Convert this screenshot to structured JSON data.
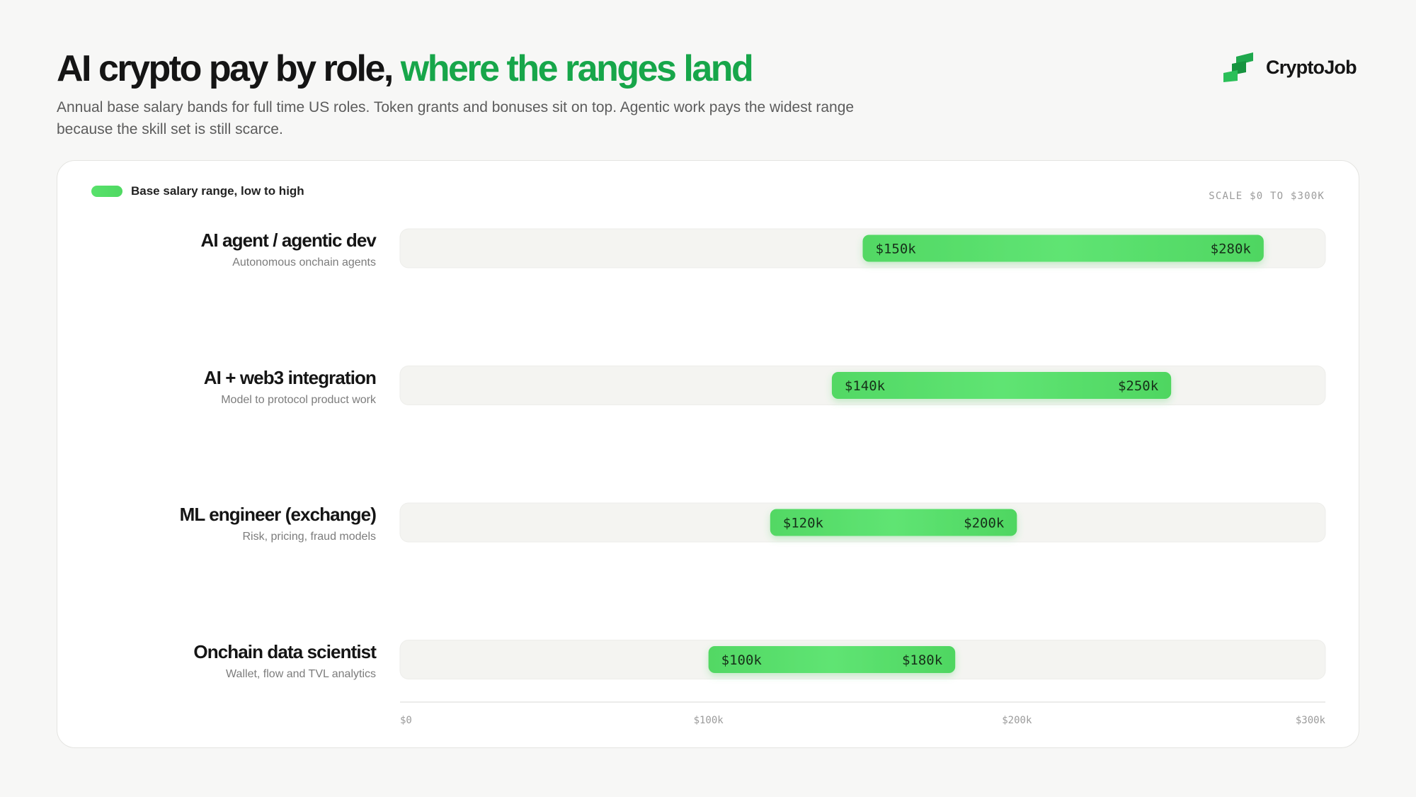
{
  "header": {
    "title_main": "AI crypto pay by role,",
    "title_accent": "where the ranges land",
    "subtitle": "Annual base salary bands for full time US roles. Token grants and bonuses sit on top. Agentic work pays the widest range because the skill set is still scarce."
  },
  "brand": {
    "name": "CryptoJob",
    "logo_icon": "cryptojob-logo-icon",
    "color": "#1fa84d"
  },
  "colors": {
    "accent": "#17a64a",
    "bar": "#55dd68",
    "track": "#f4f4f1"
  },
  "chart_data": {
    "type": "bar",
    "orientation": "horizontal-range",
    "legend": {
      "label": "Base salary range, low to high",
      "placement": "top-left"
    },
    "scale_note": "SCALE $0 TO $300K",
    "xlim": [
      0,
      300000
    ],
    "ticks": [
      {
        "value": 0,
        "label": "$0"
      },
      {
        "value": 100000,
        "label": "$100k"
      },
      {
        "value": 200000,
        "label": "$200k"
      },
      {
        "value": 300000,
        "label": "$300k"
      }
    ],
    "rows": [
      {
        "role": "AI agent / agentic dev",
        "desc": "Autonomous onchain agents",
        "low": 150000,
        "high": 280000,
        "low_label": "$150k",
        "high_label": "$280k"
      },
      {
        "role": "AI + web3 integration",
        "desc": "Model to protocol product work",
        "low": 140000,
        "high": 250000,
        "low_label": "$140k",
        "high_label": "$250k"
      },
      {
        "role": "ML engineer (exchange)",
        "desc": "Risk, pricing, fraud models",
        "low": 120000,
        "high": 200000,
        "low_label": "$120k",
        "high_label": "$200k"
      },
      {
        "role": "Onchain data scientist",
        "desc": "Wallet, flow and TVL analytics",
        "low": 100000,
        "high": 180000,
        "low_label": "$100k",
        "high_label": "$180k"
      }
    ]
  }
}
